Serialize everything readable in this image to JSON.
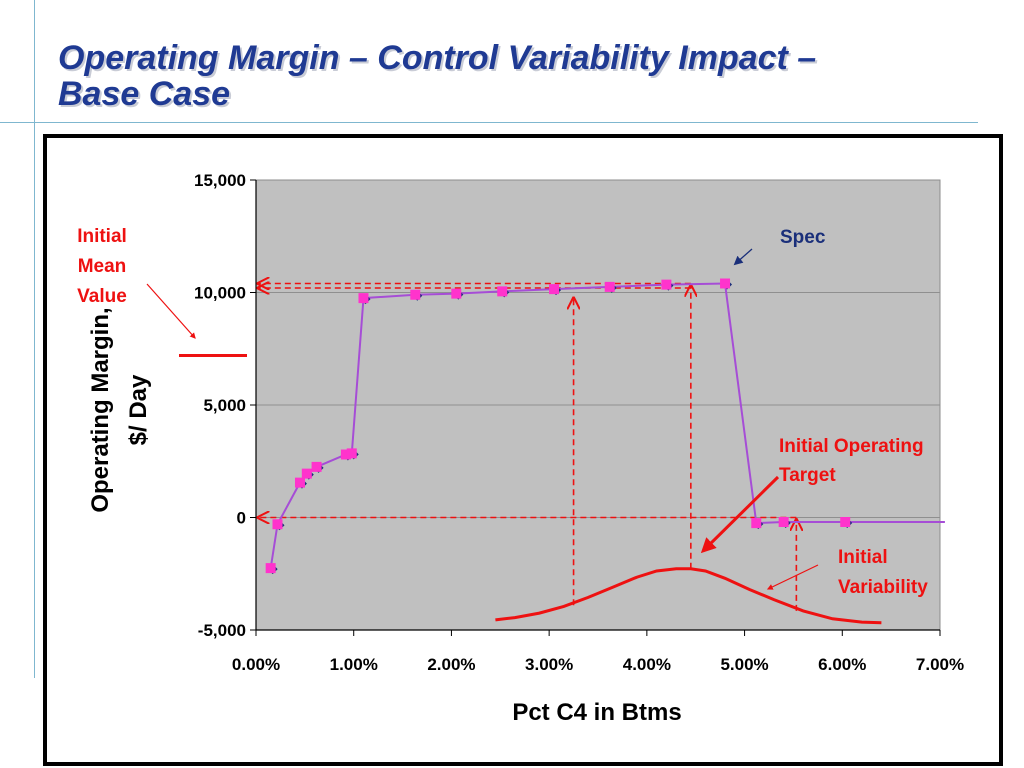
{
  "slide": {
    "title_line1": "Operating Margin – Control Variability Impact –",
    "title_line2": "Base Case"
  },
  "colors": {
    "title": "#1f3a93",
    "plot_background": "#c0c0c0",
    "series_line": "#a64dd6",
    "series_marker": "#ff33cc",
    "annotation_red": "#ee1111",
    "annotation_navy": "#1a2f7a"
  },
  "chart_data": {
    "type": "line",
    "xlabel": "Pct C4 in Btms",
    "ylabel_line1": "Operating Margin,",
    "ylabel_line2": "$/ Day",
    "xlim": [
      0,
      0.07
    ],
    "ylim": [
      -5000,
      15000
    ],
    "x_ticks": [
      {
        "value": 0.0,
        "label": "0.00%"
      },
      {
        "value": 0.01,
        "label": "1.00%"
      },
      {
        "value": 0.02,
        "label": "2.00%"
      },
      {
        "value": 0.03,
        "label": "3.00%"
      },
      {
        "value": 0.04,
        "label": "4.00%"
      },
      {
        "value": 0.05,
        "label": "5.00%"
      },
      {
        "value": 0.06,
        "label": "6.00%"
      },
      {
        "value": 0.07,
        "label": "7.00%"
      }
    ],
    "y_ticks": [
      {
        "value": -5000,
        "label": "-5,000"
      },
      {
        "value": 0,
        "label": "0"
      },
      {
        "value": 5000,
        "label": "5,000"
      },
      {
        "value": 10000,
        "label": "10,000"
      },
      {
        "value": 15000,
        "label": "15,000"
      }
    ],
    "grid": "horizontal",
    "series": [
      {
        "x": [
          0.0015,
          0.0022,
          0.0045,
          0.0052,
          0.0062,
          0.0092,
          0.0098,
          0.011,
          0.0163,
          0.0205,
          0.0252,
          0.0305,
          0.0362,
          0.042,
          0.048,
          0.0512,
          0.054,
          0.0603
        ],
        "y": [
          -2250,
          -300,
          1550,
          1950,
          2250,
          2800,
          2850,
          9750,
          9900,
          9950,
          10050,
          10150,
          10250,
          10350,
          10400,
          -250,
          -200,
          -200
        ],
        "line_end": {
          "x": 0.0705,
          "y": -200
        }
      }
    ],
    "distribution_curve": {
      "x": [
        0.0245,
        0.0265,
        0.029,
        0.0315,
        0.034,
        0.0365,
        0.039,
        0.041,
        0.043,
        0.0445,
        0.046,
        0.048,
        0.0505,
        0.053,
        0.056,
        0.059,
        0.062,
        0.064
      ],
      "y": [
        -4550,
        -4450,
        -4250,
        -3950,
        -3550,
        -3100,
        -2650,
        -2380,
        -2280,
        -2280,
        -2380,
        -2700,
        -3200,
        -3650,
        -4150,
        -4500,
        -4650,
        -4680
      ]
    },
    "reference_lines": {
      "spec_y": 10400,
      "mean_y": 10200,
      "zero_y": 0,
      "target_x": 0.0445,
      "lower_x": 0.0325,
      "upper_x": 0.0553
    },
    "initial_mean_value_y": 7200,
    "annotations": {
      "initial_mean": [
        "Initial",
        "Mean",
        "Value"
      ],
      "spec": "Spec",
      "operating_target": [
        "Initial Operating",
        "Target"
      ],
      "variability": [
        "Initial",
        "Variability"
      ]
    }
  }
}
